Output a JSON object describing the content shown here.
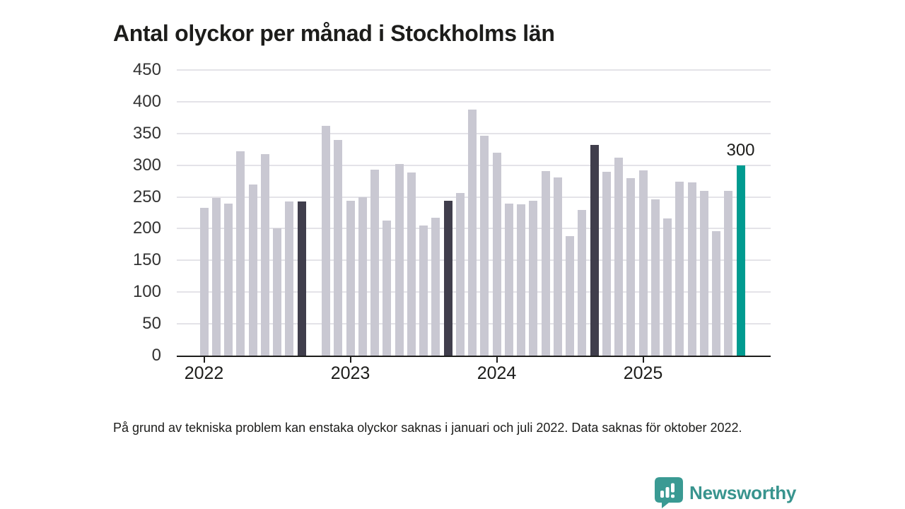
{
  "title": "Antal olyckor per månad i Stockholms län",
  "footnote": "På grund av tekniska problem kan enstaka olyckor saknas i januari och juli 2022. Data saknas för oktober 2022.",
  "branding": {
    "name": "Newsworthy",
    "icon": "newsworthy-bubble-chart-icon"
  },
  "colors": {
    "bar_default": "#c9c8d2",
    "bar_highlight": "#403e4c",
    "bar_latest": "#009b90",
    "axis": "#1d1d1b",
    "grid": "#e4e3e8",
    "tick_label": "#333333",
    "brand": "#38948e",
    "background": "#ffffff"
  },
  "chart_data": {
    "type": "bar",
    "title": "Antal olyckor per månad i Stockholms län",
    "xlabel": "",
    "ylabel": "",
    "ylim": [
      0,
      450
    ],
    "ytick_step": 50,
    "grid": true,
    "year_ticks": [
      "2022",
      "2023",
      "2024",
      "2025"
    ],
    "missing_months": [
      "2022-10"
    ],
    "value_label": {
      "month": "2025-09",
      "text": "300"
    },
    "months": [
      {
        "month": "2022-01",
        "value": 233,
        "style": "normal"
      },
      {
        "month": "2022-02",
        "value": 248,
        "style": "normal"
      },
      {
        "month": "2022-03",
        "value": 239,
        "style": "normal"
      },
      {
        "month": "2022-04",
        "value": 322,
        "style": "normal"
      },
      {
        "month": "2022-05",
        "value": 270,
        "style": "normal"
      },
      {
        "month": "2022-06",
        "value": 318,
        "style": "normal"
      },
      {
        "month": "2022-07",
        "value": 201,
        "style": "normal"
      },
      {
        "month": "2022-08",
        "value": 243,
        "style": "normal"
      },
      {
        "month": "2022-09",
        "value": 243,
        "style": "highlight"
      },
      {
        "month": "2022-10",
        "value": null,
        "style": "missing"
      },
      {
        "month": "2022-11",
        "value": 362,
        "style": "normal"
      },
      {
        "month": "2022-12",
        "value": 340,
        "style": "normal"
      },
      {
        "month": "2023-01",
        "value": 244,
        "style": "normal"
      },
      {
        "month": "2023-02",
        "value": 250,
        "style": "normal"
      },
      {
        "month": "2023-03",
        "value": 293,
        "style": "normal"
      },
      {
        "month": "2023-04",
        "value": 213,
        "style": "normal"
      },
      {
        "month": "2023-05",
        "value": 302,
        "style": "normal"
      },
      {
        "month": "2023-06",
        "value": 288,
        "style": "normal"
      },
      {
        "month": "2023-07",
        "value": 205,
        "style": "normal"
      },
      {
        "month": "2023-08",
        "value": 217,
        "style": "normal"
      },
      {
        "month": "2023-09",
        "value": 244,
        "style": "highlight"
      },
      {
        "month": "2023-10",
        "value": 256,
        "style": "normal"
      },
      {
        "month": "2023-11",
        "value": 388,
        "style": "normal"
      },
      {
        "month": "2023-12",
        "value": 346,
        "style": "normal"
      },
      {
        "month": "2024-01",
        "value": 320,
        "style": "normal"
      },
      {
        "month": "2024-02",
        "value": 239,
        "style": "normal"
      },
      {
        "month": "2024-03",
        "value": 238,
        "style": "normal"
      },
      {
        "month": "2024-04",
        "value": 244,
        "style": "normal"
      },
      {
        "month": "2024-05",
        "value": 291,
        "style": "normal"
      },
      {
        "month": "2024-06",
        "value": 281,
        "style": "normal"
      },
      {
        "month": "2024-07",
        "value": 188,
        "style": "normal"
      },
      {
        "month": "2024-08",
        "value": 229,
        "style": "normal"
      },
      {
        "month": "2024-09",
        "value": 332,
        "style": "highlight"
      },
      {
        "month": "2024-10",
        "value": 290,
        "style": "normal"
      },
      {
        "month": "2024-11",
        "value": 312,
        "style": "normal"
      },
      {
        "month": "2024-12",
        "value": 280,
        "style": "normal"
      },
      {
        "month": "2025-01",
        "value": 292,
        "style": "normal"
      },
      {
        "month": "2025-02",
        "value": 246,
        "style": "normal"
      },
      {
        "month": "2025-03",
        "value": 216,
        "style": "normal"
      },
      {
        "month": "2025-04",
        "value": 274,
        "style": "normal"
      },
      {
        "month": "2025-05",
        "value": 273,
        "style": "normal"
      },
      {
        "month": "2025-06",
        "value": 260,
        "style": "normal"
      },
      {
        "month": "2025-07",
        "value": 196,
        "style": "normal"
      },
      {
        "month": "2025-08",
        "value": 260,
        "style": "normal"
      },
      {
        "month": "2025-09",
        "value": 300,
        "style": "latest"
      }
    ]
  }
}
